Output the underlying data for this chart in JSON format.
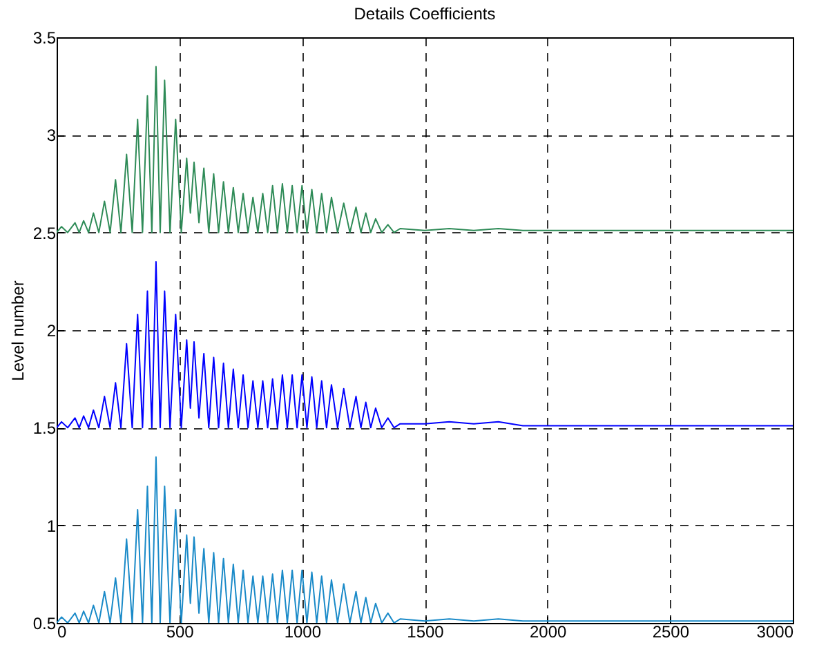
{
  "chart_data": {
    "type": "line",
    "title": "Details Coefficients",
    "ylabel": "Level number",
    "x": [
      0,
      20,
      45,
      75,
      92,
      110,
      130,
      150,
      172,
      195,
      218,
      240,
      262,
      285,
      308,
      330,
      350,
      370,
      388,
      405,
      422,
      440,
      462,
      485,
      508,
      530,
      545,
      560,
      580,
      600,
      620,
      640,
      660,
      680,
      700,
      720,
      740,
      760,
      780,
      800,
      820,
      840,
      860,
      880,
      900,
      920,
      940,
      960,
      980,
      1000,
      1020,
      1040,
      1060,
      1080,
      1100,
      1120,
      1145,
      1170,
      1195,
      1220,
      1240,
      1260,
      1280,
      1300,
      1325,
      1350,
      1375,
      1400,
      1500,
      1600,
      1700,
      1800,
      1900,
      2000,
      2200,
      2400,
      2600,
      2800,
      3000
    ],
    "series": [
      {
        "color": "#1a8ac8",
        "values": [
          0.5,
          0.53,
          0.5,
          0.55,
          0.5,
          0.56,
          0.5,
          0.59,
          0.5,
          0.66,
          0.5,
          0.73,
          0.5,
          0.93,
          0.5,
          1.08,
          0.5,
          1.2,
          0.5,
          1.35,
          0.5,
          1.2,
          0.5,
          1.08,
          0.5,
          0.95,
          0.6,
          0.94,
          0.55,
          0.88,
          0.5,
          0.86,
          0.5,
          0.83,
          0.5,
          0.8,
          0.5,
          0.77,
          0.5,
          0.74,
          0.5,
          0.74,
          0.5,
          0.75,
          0.5,
          0.77,
          0.5,
          0.77,
          0.5,
          0.77,
          0.5,
          0.76,
          0.5,
          0.74,
          0.5,
          0.72,
          0.5,
          0.7,
          0.5,
          0.66,
          0.5,
          0.63,
          0.5,
          0.6,
          0.5,
          0.55,
          0.5,
          0.52,
          0.51,
          0.52,
          0.51,
          0.52,
          0.51,
          0.51,
          0.51,
          0.51,
          0.51,
          0.51,
          0.51
        ]
      },
      {
        "color": "#0000ff",
        "values": [
          1.5,
          1.53,
          1.5,
          1.55,
          1.5,
          1.56,
          1.5,
          1.59,
          1.5,
          1.66,
          1.5,
          1.73,
          1.5,
          1.93,
          1.5,
          2.08,
          1.5,
          2.2,
          1.5,
          2.35,
          1.5,
          2.2,
          1.5,
          2.08,
          1.5,
          1.95,
          1.6,
          1.94,
          1.55,
          1.88,
          1.5,
          1.86,
          1.5,
          1.83,
          1.5,
          1.8,
          1.5,
          1.77,
          1.5,
          1.74,
          1.5,
          1.74,
          1.5,
          1.75,
          1.5,
          1.77,
          1.5,
          1.77,
          1.5,
          1.77,
          1.5,
          1.76,
          1.5,
          1.74,
          1.5,
          1.72,
          1.5,
          1.7,
          1.5,
          1.66,
          1.5,
          1.63,
          1.5,
          1.6,
          1.5,
          1.55,
          1.5,
          1.52,
          1.52,
          1.53,
          1.52,
          1.53,
          1.51,
          1.51,
          1.51,
          1.51,
          1.51,
          1.51,
          1.51
        ]
      },
      {
        "color": "#2e8b57",
        "values": [
          2.5,
          2.53,
          2.5,
          2.55,
          2.5,
          2.56,
          2.5,
          2.6,
          2.5,
          2.66,
          2.5,
          2.77,
          2.5,
          2.9,
          2.5,
          3.08,
          2.5,
          3.2,
          2.5,
          3.35,
          2.5,
          3.28,
          2.5,
          3.08,
          2.5,
          2.88,
          2.6,
          2.86,
          2.55,
          2.83,
          2.5,
          2.8,
          2.5,
          2.76,
          2.5,
          2.73,
          2.5,
          2.7,
          2.5,
          2.68,
          2.5,
          2.7,
          2.5,
          2.74,
          2.5,
          2.75,
          2.5,
          2.74,
          2.5,
          2.74,
          2.5,
          2.72,
          2.5,
          2.7,
          2.5,
          2.68,
          2.5,
          2.65,
          2.5,
          2.63,
          2.5,
          2.6,
          2.5,
          2.57,
          2.5,
          2.54,
          2.5,
          2.52,
          2.51,
          2.52,
          2.51,
          2.52,
          2.51,
          2.51,
          2.51,
          2.51,
          2.51,
          2.51,
          2.51
        ]
      }
    ],
    "xlim": [
      0,
      3000
    ],
    "xticks": [
      0,
      500,
      1000,
      1500,
      2000,
      2500,
      3000
    ],
    "ylim": [
      0.5,
      3.5
    ],
    "yticks": [
      0.5,
      1,
      1.5,
      2,
      2.5,
      3,
      3.5
    ],
    "grid": true
  }
}
